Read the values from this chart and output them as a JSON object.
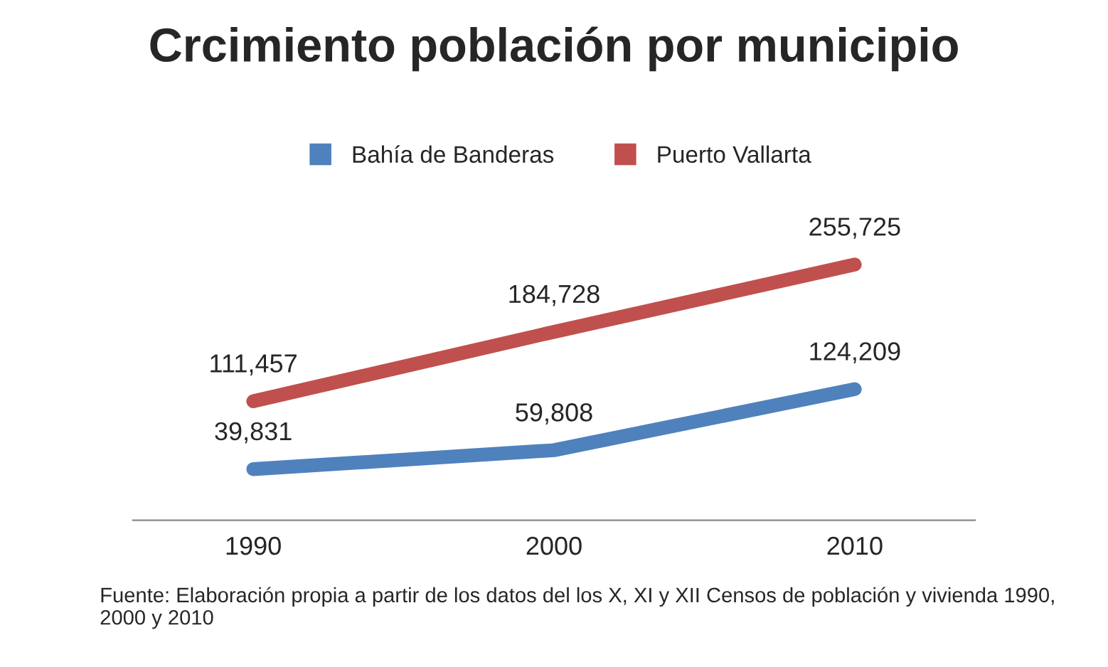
{
  "chart_data": {
    "type": "line",
    "title": "Crcimiento población por municipio",
    "categories": [
      "1990",
      "2000",
      "2010"
    ],
    "series": [
      {
        "name": "Bahía de Banderas",
        "color": "#4f81bd",
        "values": [
          39831,
          59808,
          124209
        ],
        "value_labels": [
          "39,831",
          "59,808",
          "124,209"
        ]
      },
      {
        "name": "Puerto Vallarta",
        "color": "#c0504d",
        "values": [
          111457,
          184728,
          255725
        ],
        "value_labels": [
          "111,457",
          "184,728",
          "255,725"
        ]
      }
    ],
    "legend": "top",
    "grid": false,
    "annotations": [
      "Fuente: Elaboración propia a partir de los datos del los X, XI y XII Censos de población y vivienda 1990, 2000 y 2010"
    ]
  }
}
